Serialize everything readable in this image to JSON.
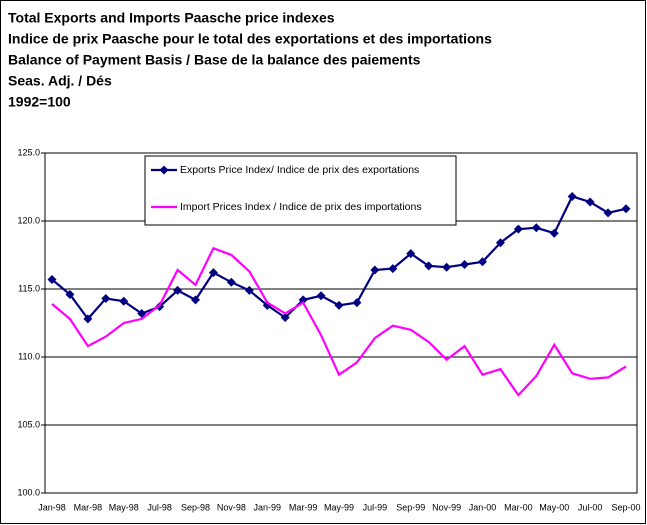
{
  "chart_data": {
    "type": "line",
    "title": [
      "Total Exports and Imports Paasche price indexes",
      "Indice de prix Paasche pour le total  des exportations et  des importations",
      "Balance of Payment Basis / Base de la balance des paiements",
      "Seas. Adj. / Dés",
      "1992=100"
    ],
    "categories": [
      "Jan-98",
      null,
      "Mar-98",
      null,
      "May-98",
      null,
      "Jul-98",
      null,
      "Sep-98",
      null,
      "Nov-98",
      null,
      "Jan-99",
      null,
      "Mar-99",
      null,
      "May-99",
      null,
      "Jul-99",
      null,
      "Sep-99",
      null,
      "Nov-99",
      null,
      "Jan-00",
      null,
      "Mar-00",
      null,
      "May-00",
      null,
      "Jul-00",
      null,
      "Sep-00"
    ],
    "series": [
      {
        "name": "Exports Price Index/ Indice de prix des exportations",
        "color": "#000080",
        "marker": "diamond",
        "values": [
          115.7,
          114.6,
          112.8,
          114.3,
          114.1,
          113.2,
          113.7,
          114.9,
          114.2,
          116.2,
          115.5,
          114.9,
          113.8,
          112.9,
          114.2,
          114.5,
          113.8,
          114.0,
          116.4,
          116.5,
          117.6,
          116.7,
          116.6,
          116.8,
          117.0,
          118.4,
          119.4,
          119.5,
          119.1,
          121.8,
          121.4,
          120.6,
          120.9
        ]
      },
      {
        "name": "Import Prices Index / Indice de prix des importations",
        "color": "#ff00ff",
        "marker": "none",
        "values": [
          113.9,
          112.8,
          110.8,
          111.5,
          112.5,
          112.8,
          113.8,
          116.4,
          115.3,
          118.0,
          117.5,
          116.3,
          114.0,
          113.2,
          114.0,
          111.6,
          108.7,
          109.6,
          111.4,
          112.3,
          112.0,
          111.1,
          109.8,
          110.8,
          108.7,
          109.1,
          107.2,
          108.6,
          110.9,
          108.8,
          108.4,
          108.5,
          109.3
        ]
      }
    ],
    "ylim": [
      100,
      125
    ],
    "yticks": [
      {
        "value": 100,
        "label": "100.0"
      },
      {
        "value": 105,
        "label": "105.0"
      },
      {
        "value": 110,
        "label": "110.0"
      },
      {
        "value": 115,
        "label": "115.0"
      },
      {
        "value": 120,
        "label": "120.0"
      },
      {
        "value": 125,
        "label": "125.0"
      }
    ],
    "grid": true,
    "legend": "top"
  }
}
